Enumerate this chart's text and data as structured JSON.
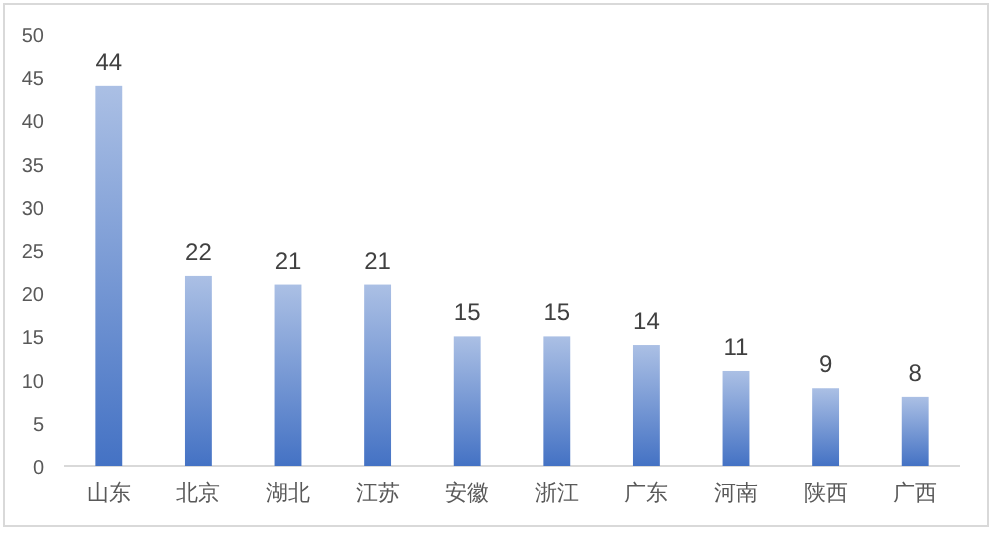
{
  "chart_data": {
    "type": "bar",
    "categories": [
      "山东",
      "北京",
      "湖北",
      "江苏",
      "安徽",
      "浙江",
      "广东",
      "河南",
      "陕西",
      "广西"
    ],
    "values": [
      44,
      22,
      21,
      21,
      15,
      15,
      14,
      11,
      9,
      8
    ],
    "color": "#4472c4",
    "ylim": [
      0,
      50
    ],
    "yticks": [
      0,
      5,
      10,
      15,
      20,
      25,
      30,
      35,
      40,
      45,
      50
    ],
    "grid": false,
    "data_labels": true
  }
}
